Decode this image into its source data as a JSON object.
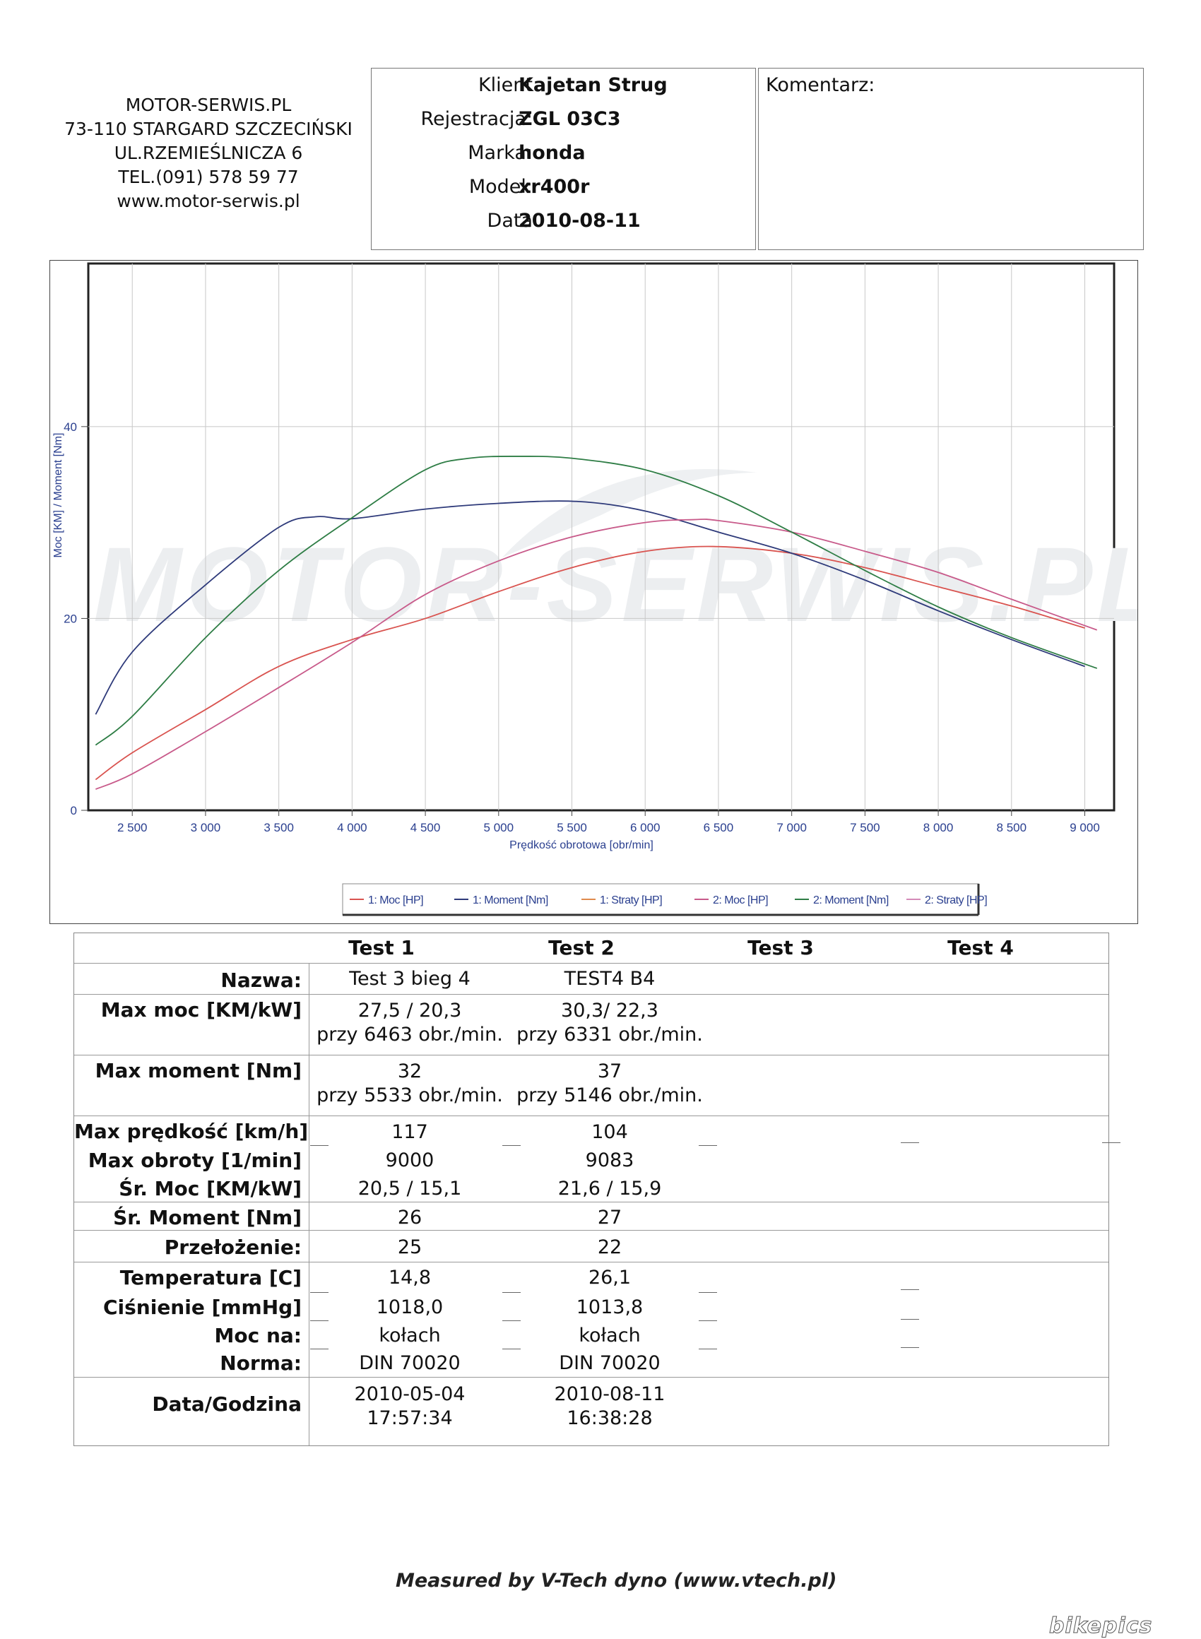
{
  "company": {
    "name": "MOTOR-SERWIS.PL",
    "city": "73-110 STARGARD SZCZECIŃSKI",
    "street": "UL.RZEMIEŚLNICZA 6",
    "phone": "TEL.(091) 578 59 77",
    "web": "www.motor-serwis.pl"
  },
  "client": {
    "klient_label": "Klient",
    "klient": "Kajetan Strug",
    "rejestracja_label": "Rejestracja:",
    "rejestracja": "ZGL 03C3",
    "marka_label": "Marka:",
    "marka": "honda",
    "model_label": "Model:",
    "model": "xr400r",
    "data_label": "Data",
    "data": "2010-08-11"
  },
  "comment": {
    "label": "Komentarz:"
  },
  "watermark": "MOTOR-SERWIS.PL",
  "chart_data": {
    "type": "line",
    "xlabel": "Prędkość obrotowa [obr/min]",
    "ylabel": "Moc [KM] / Moment [Nm]",
    "xlim": [
      2200,
      9200
    ],
    "ylim": [
      0,
      57
    ],
    "x_ticks": [
      2500,
      3000,
      3500,
      4000,
      4500,
      5000,
      5500,
      6000,
      6500,
      7000,
      7500,
      8000,
      8500,
      9000
    ],
    "x_tick_labels": [
      "2 500",
      "3 000",
      "3 500",
      "4 000",
      "4 500",
      "5 000",
      "5 500",
      "6 000",
      "6 500",
      "7 000",
      "7 500",
      "8 000",
      "8 500",
      "9 000"
    ],
    "y_ticks": [
      0,
      20,
      40
    ],
    "y_tick_labels": [
      "0",
      "20",
      "40"
    ],
    "grid": true,
    "legend_position": "bottom",
    "series": [
      {
        "name": "1: Moc [HP]",
        "color": "#d9534f",
        "x": [
          2250,
          2500,
          3000,
          3500,
          4000,
          4500,
          5000,
          5500,
          6000,
          6463,
          7000,
          7500,
          8000,
          8500,
          9000
        ],
        "y": [
          3.2,
          6.0,
          10.5,
          15.0,
          17.8,
          20.0,
          22.8,
          25.3,
          27.0,
          27.5,
          26.8,
          25.3,
          23.3,
          21.3,
          19.0
        ]
      },
      {
        "name": "1: Moment [Nm]",
        "color": "#2e3a7a",
        "x": [
          2250,
          2500,
          3000,
          3500,
          3750,
          4000,
          4500,
          5000,
          5533,
          6000,
          6500,
          7000,
          7500,
          8000,
          8500,
          9000
        ],
        "y": [
          10.0,
          16.5,
          23.5,
          29.5,
          30.6,
          30.4,
          31.4,
          32.0,
          32.2,
          31.2,
          29.0,
          26.8,
          24.0,
          20.8,
          17.8,
          15.0
        ]
      },
      {
        "name": "1: Straty [HP]",
        "color": "#e08a4c",
        "x": [],
        "y": []
      },
      {
        "name": "2: Moc [HP]",
        "color": "#c85a8a",
        "x": [
          2250,
          2500,
          3000,
          3500,
          4000,
          4500,
          5000,
          5500,
          6000,
          6331,
          6500,
          7000,
          7500,
          8000,
          8500,
          9083
        ],
        "y": [
          2.2,
          3.8,
          8.2,
          12.8,
          17.5,
          22.5,
          26.0,
          28.5,
          30.0,
          30.3,
          30.2,
          29.0,
          27.0,
          24.8,
          22.0,
          18.8
        ]
      },
      {
        "name": "2: Moment [Nm]",
        "color": "#2e7d45",
        "x": [
          2250,
          2500,
          3000,
          3500,
          4000,
          4500,
          4800,
          5146,
          5500,
          6000,
          6500,
          7000,
          7500,
          8000,
          8500,
          9083
        ],
        "y": [
          6.8,
          9.8,
          18.0,
          25.0,
          30.5,
          35.5,
          36.7,
          36.9,
          36.7,
          35.5,
          32.8,
          29.0,
          25.0,
          21.2,
          18.0,
          14.8
        ]
      },
      {
        "name": "2: Straty [HP]",
        "color": "#d48ab8",
        "x": [],
        "y": []
      }
    ]
  },
  "table": {
    "headers": [
      "Test 1",
      "Test 2",
      "Test 3",
      "Test 4"
    ],
    "nazwa_label": "Nazwa:",
    "nazwa": [
      "Test 3 bieg 4",
      "TEST4 B4"
    ],
    "max_moc_label": "Max moc [KM/kW]",
    "max_moc": [
      [
        "27,5 / 20,3",
        "przy 6463 obr./min."
      ],
      [
        "30,3/ 22,3",
        "przy 6331 obr./min."
      ]
    ],
    "max_moment_label": "Max moment [Nm]",
    "max_moment": [
      [
        "32",
        "przy 5533 obr./min."
      ],
      [
        "37",
        "przy 5146 obr./min."
      ]
    ],
    "max_predkosc_label": "Max prędkość [km/h]",
    "max_predkosc": [
      "117",
      "104"
    ],
    "max_obroty_label": "Max obroty [1/min]",
    "max_obroty": [
      "9000",
      "9083"
    ],
    "sr_moc_label": "Śr. Moc [KM/kW]",
    "sr_moc": [
      "20,5 / 15,1",
      "21,6 / 15,9"
    ],
    "sr_moment_label": "Śr. Moment [Nm]",
    "sr_moment": [
      "26",
      "27"
    ],
    "przelozenie_label": "Przełożenie:",
    "przelozenie": [
      "25",
      "22"
    ],
    "temperatura_label": "Temperatura [C]",
    "temperatura": [
      "14,8",
      "26,1"
    ],
    "cisnienie_label": "Ciśnienie [mmHg]",
    "cisnienie": [
      "1018,0",
      "1013,8"
    ],
    "moc_na_label": "Moc na:",
    "moc_na": [
      "kołach",
      "kołach"
    ],
    "norma_label": "Norma:",
    "norma": [
      "DIN 70020",
      "DIN 70020"
    ],
    "data_godzina_label": "Data/Godzina",
    "data_godzina": [
      [
        "2010-05-04",
        "17:57:34"
      ],
      [
        "2010-08-11",
        "16:38:28"
      ]
    ]
  },
  "footer": "Measured by V-Tech dyno (www.vtech.pl)",
  "brand": "bikepics"
}
